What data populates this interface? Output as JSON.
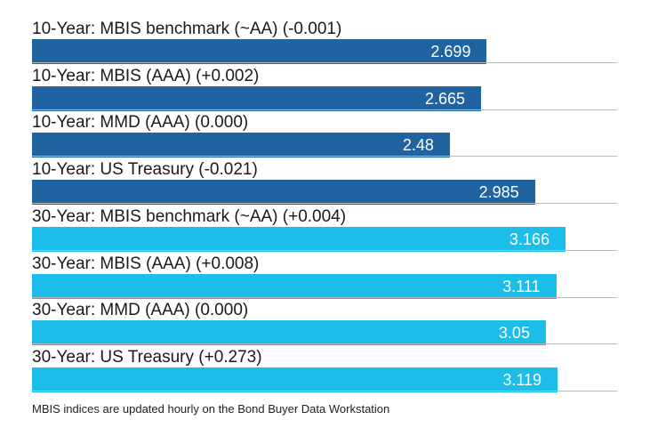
{
  "chart_data": {
    "type": "bar",
    "orientation": "horizontal",
    "categories": [
      "10-Year: MBIS benchmark (~AA) (-0.001)",
      "10-Year: MBIS (AAA) (+0.002)",
      "10-Year: MMD (AAA) (0.000)",
      "10-Year: US Treasury (-0.021)",
      "30-Year: MBIS benchmark (~AA) (+0.004)",
      "30-Year: MBIS (AAA) (+0.008)",
      "30-Year: MMD (AAA) (0.000)",
      "30-Year: US Treasury (+0.273)"
    ],
    "values": [
      2.699,
      2.665,
      2.48,
      2.985,
      3.166,
      3.111,
      3.05,
      3.119
    ],
    "value_labels": [
      "2.699",
      "2.665",
      "2.48",
      "2.985",
      "3.166",
      "3.111",
      "3.05",
      "3.119"
    ],
    "colors": [
      "#1f64a0",
      "#1f64a0",
      "#1f64a0",
      "#1f64a0",
      "#1cbde8",
      "#1cbde8",
      "#1cbde8",
      "#1cbde8"
    ],
    "xlim": [
      0,
      3.3
    ],
    "grid": false,
    "legend": "none"
  },
  "footnote": "MBIS indices are updated hourly on the Bond Buyer Data Workstation"
}
